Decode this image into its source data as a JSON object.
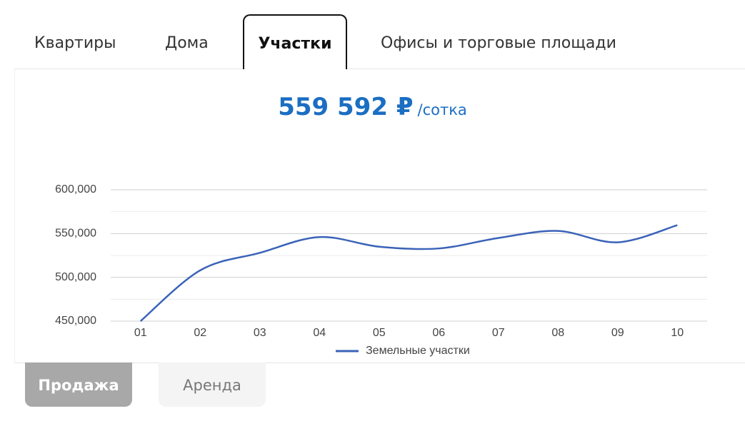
{
  "tabs": [
    "Квартиры",
    "Дома",
    "Участки",
    "Офисы и торговые площади"
  ],
  "active_tab": 2,
  "price": {
    "amount": "559 592 ₽",
    "unit": "/сотка"
  },
  "chart_data": {
    "type": "line",
    "categories": [
      "01",
      "02",
      "03",
      "04",
      "05",
      "06",
      "07",
      "08",
      "09",
      "10"
    ],
    "series": [
      {
        "name": "Земельные участки",
        "color": "#3a63b8",
        "values": [
          450000,
          508000,
          528000,
          546000,
          535000,
          533000,
          545000,
          553000,
          540000,
          559592
        ]
      }
    ],
    "ylim": [
      450000,
      600000
    ],
    "yticks": [
      {
        "value": 450000,
        "label": "450,000"
      },
      {
        "value": 500000,
        "label": "500,000"
      },
      {
        "value": 550000,
        "label": "550,000"
      },
      {
        "value": 600000,
        "label": "600,000"
      }
    ],
    "minor_yticks": [
      475000,
      525000,
      575000
    ],
    "grid": true,
    "legend": "bottom",
    "smooth": true
  },
  "buttons": [
    "Продажа",
    "Аренда"
  ],
  "active_button": 0
}
